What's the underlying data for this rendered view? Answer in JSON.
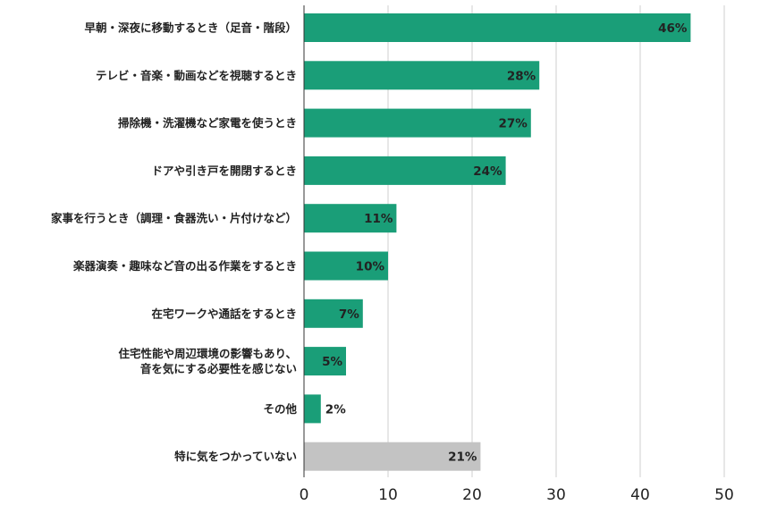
{
  "chart_data": {
    "type": "bar",
    "orientation": "horizontal",
    "categories": [
      [
        "早朝・深夜に移動するとき（足音・階段）"
      ],
      [
        "テレビ・音楽・動画などを視聴するとき"
      ],
      [
        "掃除機・洗濯機など家電を使うとき"
      ],
      [
        "ドアや引き戸を開閉するとき"
      ],
      [
        "家事を行うとき（調理・食器洗い・片付けなど）"
      ],
      [
        "楽器演奏・趣味など音の出る作業をするとき"
      ],
      [
        "在宅ワークや通話をするとき"
      ],
      [
        "住宅性能や周辺環境の影響もあり、",
        "音を気にする必要性を感じない"
      ],
      [
        "その他"
      ],
      [
        "特に気をつかっていない"
      ]
    ],
    "values": [
      46,
      28,
      27,
      24,
      11,
      10,
      7,
      5,
      2,
      21
    ],
    "value_labels": [
      "46%",
      "28%",
      "27%",
      "24%",
      "11%",
      "10%",
      "7%",
      "5%",
      "2%",
      "21%"
    ],
    "bar_colors": [
      "#1a9e78",
      "#1a9e78",
      "#1a9e78",
      "#1a9e78",
      "#1a9e78",
      "#1a9e78",
      "#1a9e78",
      "#1a9e78",
      "#1a9e78",
      "#c3c3c3"
    ],
    "label_inside": [
      true,
      true,
      true,
      true,
      true,
      true,
      true,
      true,
      false,
      true
    ],
    "xlim": [
      0,
      50
    ],
    "xticks": [
      0,
      10,
      20,
      30,
      40,
      50
    ],
    "grid": "vertical",
    "title": "",
    "xlabel": "",
    "ylabel": ""
  }
}
